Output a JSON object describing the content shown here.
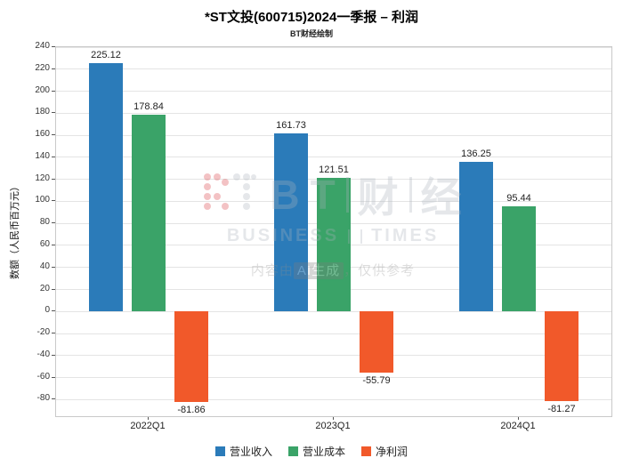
{
  "header": {
    "title": "*ST文投(600715)2024一季报 – 利润",
    "subtitle": "BT财经绘制"
  },
  "chart_data": {
    "type": "bar",
    "categories": [
      "2022Q1",
      "2023Q1",
      "2024Q1"
    ],
    "series": [
      {
        "name": "营业收入",
        "color": "#2B7BB9",
        "values": [
          225.12,
          161.73,
          136.25
        ]
      },
      {
        "name": "营业成本",
        "color": "#3AA368",
        "values": [
          178.84,
          121.51,
          95.44
        ]
      },
      {
        "name": "净利润",
        "color": "#F1592A",
        "values": [
          -81.86,
          -55.79,
          -81.27
        ]
      }
    ],
    "ylabel": "数额（人民币百万元）",
    "ylim": [
      -95,
      240
    ],
    "yticks": [
      240,
      220,
      200,
      180,
      160,
      140,
      120,
      100,
      80,
      60,
      40,
      20,
      0,
      -20,
      -40,
      -60,
      -80
    ],
    "grid": true,
    "legend_position": "bottom"
  },
  "watermark": {
    "brand_b": "B",
    "brand_t": "T",
    "brand_cn_1": "财",
    "brand_cn_2": "经",
    "brand_en_1": "BUSINESS",
    "brand_en_2": "TIMES",
    "disclaimer_prefix": "内容由",
    "disclaimer_highlight": "AI生成",
    "disclaimer_suffix": "，仅供参考"
  }
}
